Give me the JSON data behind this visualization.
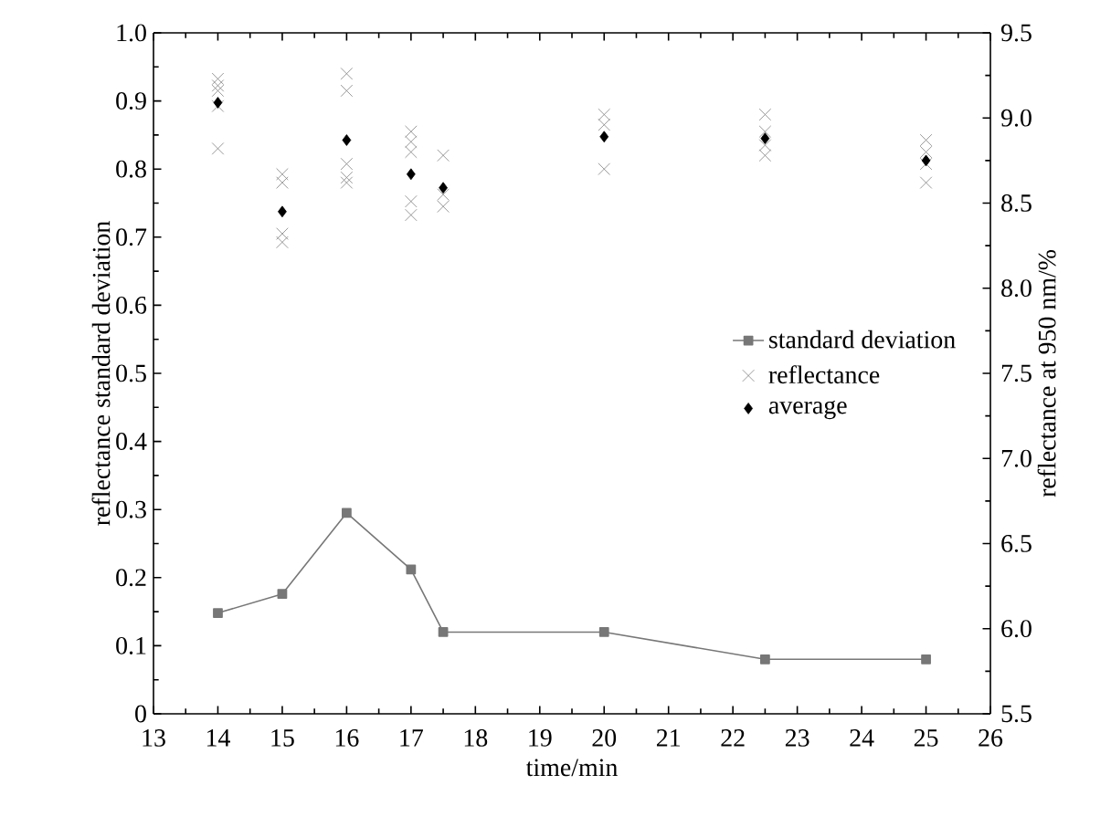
{
  "chart_data": {
    "type": "line",
    "xlabel": "time/min",
    "ylabel": "reflectance standard deviation",
    "y2label": "reflectance at 950 nm/%",
    "xlim": [
      13,
      26
    ],
    "xticks": [
      13,
      14,
      15,
      16,
      17,
      18,
      19,
      20,
      21,
      22,
      23,
      24,
      25,
      26
    ],
    "ylim": [
      0,
      1.0
    ],
    "yticks": [
      0,
      0.1,
      0.2,
      0.3,
      0.4,
      0.5,
      0.6,
      0.7,
      0.8,
      0.9,
      {
        "value": 1.0,
        "label": "1.0"
      }
    ],
    "y2lim": [
      5.5,
      9.5
    ],
    "y2ticks": [
      5.5,
      {
        "value": 6.0,
        "label": "6.0"
      },
      6.5,
      {
        "value": 7.0,
        "label": "7.0"
      },
      7.5,
      {
        "value": 8.0,
        "label": "8.0"
      },
      8.5,
      {
        "value": 9.0,
        "label": "9.0"
      },
      9.5
    ],
    "legend": "right",
    "grid": false,
    "series": [
      {
        "name": "standard deviation",
        "marker": "square",
        "color": "#777777",
        "x": [
          14,
          15,
          16,
          17,
          17.5,
          20,
          22.5,
          25
        ],
        "values": [
          0.148,
          0.176,
          0.295,
          0.212,
          0.12,
          0.12,
          0.08,
          0.08
        ]
      },
      {
        "name": "reflectance",
        "type": "scatter",
        "marker": "cross",
        "axis": "y2",
        "color": "#808080",
        "x": [
          14,
          14,
          14,
          14,
          14,
          15,
          15,
          15,
          15,
          16,
          16,
          16,
          16,
          16,
          17,
          17,
          17,
          17,
          17,
          17.5,
          17.5,
          17.5,
          20,
          20,
          20,
          22.5,
          22.5,
          22.5,
          22.5,
          25,
          25,
          25,
          25
        ],
        "values": [
          9.23,
          9.19,
          9.16,
          9.07,
          8.82,
          8.67,
          8.62,
          8.32,
          8.27,
          9.26,
          9.16,
          8.73,
          8.65,
          8.62,
          8.92,
          8.86,
          8.8,
          8.51,
          8.43,
          8.78,
          8.55,
          8.48,
          9.02,
          8.96,
          8.7,
          9.02,
          8.92,
          8.84,
          8.78,
          8.87,
          8.8,
          8.73,
          8.62
        ]
      },
      {
        "name": "average",
        "type": "scatter",
        "marker": "diamond",
        "axis": "y2",
        "color": "#000000",
        "x": [
          14,
          15,
          16,
          17,
          17.5,
          20,
          22.5,
          25
        ],
        "values": [
          9.09,
          8.45,
          8.87,
          8.67,
          8.59,
          8.89,
          8.88,
          8.75
        ]
      }
    ]
  }
}
